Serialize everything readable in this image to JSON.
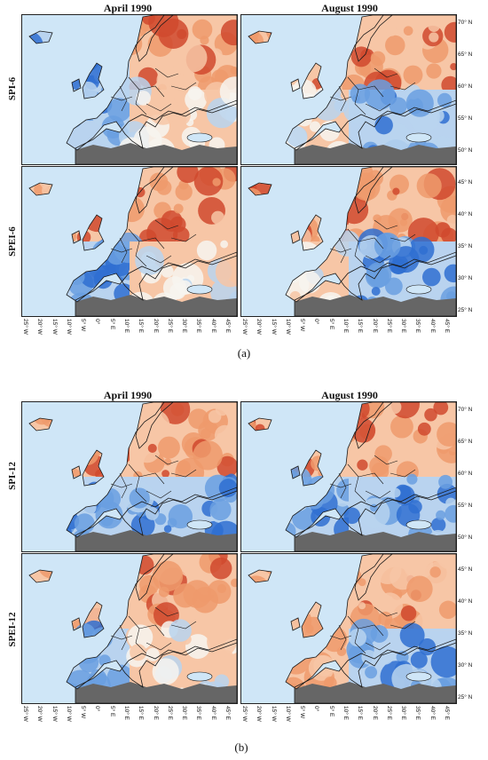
{
  "figure_a": {
    "col_titles": [
      "April 1990",
      "August 1990"
    ],
    "row_labels": [
      "SPI-6",
      "SPEI-6"
    ],
    "label": "(a)"
  },
  "figure_b": {
    "col_titles": [
      "April 1990",
      "August 1990"
    ],
    "row_labels": [
      "SPI-12",
      "SPEI-12"
    ],
    "label": "(b)"
  },
  "lat_ticks": [
    "70° N",
    "65° N",
    "60° N",
    "55° N",
    "50° N",
    "45° N",
    "40° N",
    "35° N",
    "30° N",
    "25° N"
  ],
  "lon_ticks": [
    "25° W",
    "20° W",
    "15° W",
    "10° W",
    "5° W",
    "0°",
    "5° E",
    "10° E",
    "15° E",
    "20° E",
    "25° E",
    "30° E",
    "35° E",
    "40° E",
    "45° E"
  ],
  "colors": {
    "sea": "#cfe6f7",
    "no_data": "#666666",
    "dry_strong": "#d0492e",
    "dry_moderate": "#ee9a6c",
    "dry_mild": "#f7c6a6",
    "near_normal": "#f7f4f0",
    "wet_mild": "#b9d3ef",
    "wet_moderate": "#6a9fe0",
    "wet_strong": "#2f6fd1",
    "border": "#1a1a1a"
  },
  "map_panels": [
    {
      "id": "a-spi6-apr",
      "dominant": [
        "wet",
        "dry",
        "wet",
        "normal"
      ]
    },
    {
      "id": "a-spi6-aug",
      "dominant": [
        "dry",
        "dry",
        "normal",
        "wet"
      ]
    },
    {
      "id": "a-spei6-apr",
      "dominant": [
        "dry",
        "dry",
        "wet",
        "normal"
      ]
    },
    {
      "id": "a-spei6-aug",
      "dominant": [
        "dry",
        "dry",
        "normal",
        "wet"
      ]
    },
    {
      "id": "b-spi12-apr",
      "dominant": [
        "dry",
        "dry",
        "wet",
        "wet"
      ]
    },
    {
      "id": "b-spi12-aug",
      "dominant": [
        "dry",
        "dry",
        "wet",
        "wet"
      ]
    },
    {
      "id": "b-spei12-apr",
      "dominant": [
        "dry",
        "dry",
        "wet",
        "normal"
      ]
    },
    {
      "id": "b-spei12-aug",
      "dominant": [
        "dry",
        "dry",
        "dry",
        "wet"
      ]
    }
  ]
}
